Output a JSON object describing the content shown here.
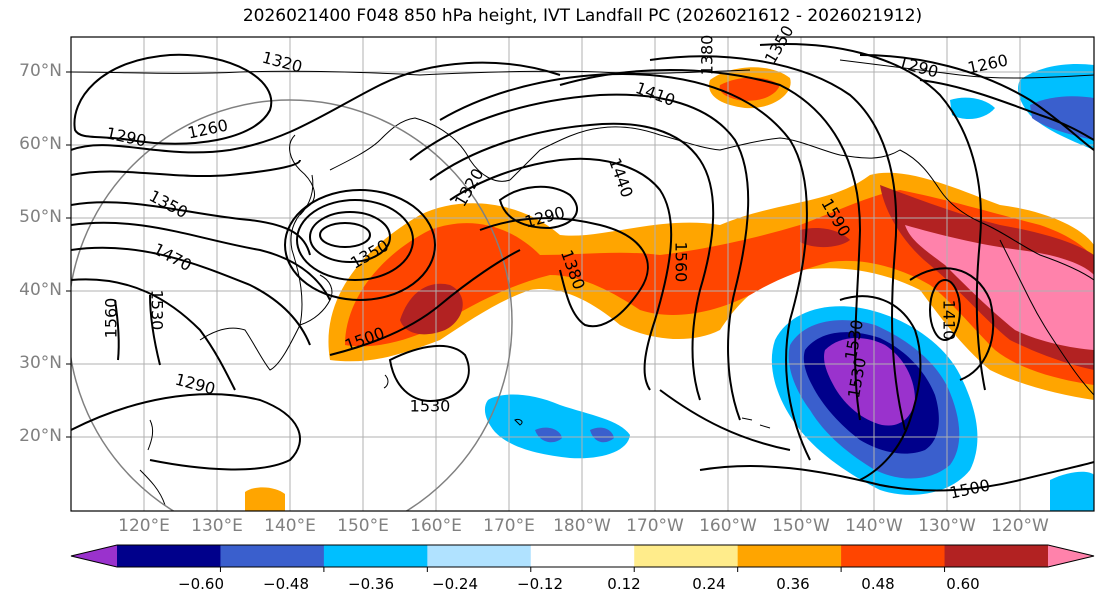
{
  "title": "2026021400 F048 850 hPa height, IVT Landfall PC (2026021612 - 2026021912)",
  "map": {
    "projection": "PlateCarree",
    "lon_range_east": [
      110,
      250
    ],
    "lat_range": [
      10,
      75
    ],
    "grid": true,
    "coastlines": true,
    "range_circle": true
  },
  "lat_ticks": [
    "70°N",
    "60°N",
    "50°N",
    "40°N",
    "30°N",
    "20°N"
  ],
  "lon_ticks": [
    "120°E",
    "130°E",
    "140°E",
    "150°E",
    "160°E",
    "170°E",
    "180°W",
    "170°W",
    "160°W",
    "150°W",
    "140°W",
    "130°W",
    "120°W"
  ],
  "contour_labels": [
    "1320",
    "1290",
    "1260",
    "1350",
    "1470",
    "1560",
    "1530",
    "1290",
    "1350",
    "1320",
    "1290",
    "1380",
    "1410",
    "1350",
    "1440",
    "1560",
    "1590",
    "1380",
    "1290",
    "1260",
    "1410",
    "1530",
    "1500",
    "1530",
    "1500",
    "1530"
  ],
  "colorbar": {
    "extend": "both",
    "colors": [
      "#9a32cd",
      "#00008b",
      "#3a5fcd",
      "#00bfff",
      "#b0e2ff",
      "#ffffff",
      "#ffec8b",
      "#ffa500",
      "#ff4500",
      "#b22222",
      "#ff82ab"
    ],
    "tick_labels": [
      "−0.60",
      "−0.48",
      "−0.36",
      "−0.24",
      "−0.12",
      "0.12",
      "0.24",
      "0.36",
      "0.48",
      "0.60"
    ]
  }
}
